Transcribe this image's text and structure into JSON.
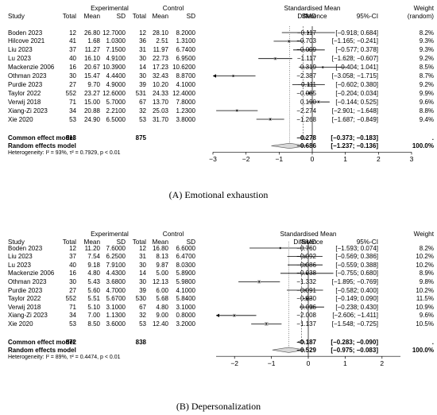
{
  "headers": {
    "study": "Study",
    "experimental": "Experimental",
    "control": "Control",
    "total": "Total",
    "mean": "Mean",
    "sd": "SD",
    "smd_title_line1": "Standardised Mean",
    "smd_title_line2": "Difference",
    "smd": "SMD",
    "ci": "95%-CI",
    "weight_title": "Weight",
    "weight_random": "(random)"
  },
  "chart_data": [
    {
      "type": "forest",
      "caption": "(A) Emotional exhaustion",
      "xlim": [
        -3,
        3
      ],
      "xticks": [
        "−3",
        "−2",
        "−1",
        "0",
        "1",
        "2",
        "3"
      ],
      "studies": [
        {
          "study": "Boden 2023",
          "e_total": "12",
          "e_mean": "26.80",
          "e_sd": "12.7000",
          "c_total": "12",
          "c_mean": "28.10",
          "c_sd": "8.2000",
          "smd": -0.117,
          "lo": -0.918,
          "hi": 0.684,
          "smd_text": "−0.117",
          "ci_text": "[−0.918;  0.684]",
          "weight": "8.2%"
        },
        {
          "study": "Hilcove 2021",
          "e_total": "41",
          "e_mean": "1.68",
          "e_sd": "1.0300",
          "c_total": "36",
          "c_mean": "2.51",
          "c_sd": "1.3100",
          "smd": -0.703,
          "lo": -1.165,
          "hi": -0.241,
          "smd_text": "−0.703",
          "ci_text": "[−1.165; −0.241]",
          "weight": "9.3%"
        },
        {
          "study": "Liu  2023",
          "e_total": "37",
          "e_mean": "11.27",
          "e_sd": "7.1500",
          "c_total": "31",
          "c_mean": "11.97",
          "c_sd": "6.7400",
          "smd": -0.099,
          "lo": -0.577,
          "hi": 0.378,
          "smd_text": "−0.099",
          "ci_text": "[−0.577;  0.378]",
          "weight": "9.3%"
        },
        {
          "study": "Lu  2023",
          "e_total": "40",
          "e_mean": "16.10",
          "e_sd": "4.9100",
          "c_total": "30",
          "c_mean": "22.73",
          "c_sd": "6.9500",
          "smd": -1.117,
          "lo": -1.628,
          "hi": -0.607,
          "smd_text": "−1.117",
          "ci_text": "[−1.628; −0.607]",
          "weight": "9.2%"
        },
        {
          "study": "Mackenzie  2006",
          "e_total": "16",
          "e_mean": "20.67",
          "e_sd": "10.3900",
          "c_total": "14",
          "c_mean": "17.23",
          "c_sd": "10.6200",
          "smd": 0.319,
          "lo": -0.404,
          "hi": 1.041,
          "smd_text": "0.319",
          "ci_text": "[−0.404;  1.041]",
          "weight": "8.5%"
        },
        {
          "study": "Othman 2023",
          "e_total": "30",
          "e_mean": "15.47",
          "e_sd": "4.4400",
          "c_total": "30",
          "c_mean": "32.43",
          "c_sd": "8.8700",
          "smd": -2.387,
          "lo": -3.058,
          "hi": -1.715,
          "smd_text": "−2.387",
          "ci_text": "[−3.058; −1.715]",
          "weight": "8.7%"
        },
        {
          "study": "Purdie 2023",
          "e_total": "27",
          "e_mean": "9.70",
          "e_sd": "4.9000",
          "c_total": "39",
          "c_mean": "10.20",
          "c_sd": "4.1000",
          "smd": -0.111,
          "lo": -0.602,
          "hi": 0.38,
          "smd_text": "−0.111",
          "ci_text": "[−0.602;  0.380]",
          "weight": "9.2%"
        },
        {
          "study": "Taylor 2022",
          "e_total": "552",
          "e_mean": "23.27",
          "e_sd": "12.6000",
          "c_total": "531",
          "c_mean": "24.33",
          "c_sd": "12.4000",
          "smd": -0.085,
          "lo": -0.204,
          "hi": 0.034,
          "smd_text": "−0.085",
          "ci_text": "[−0.204;  0.034]",
          "weight": "9.9%"
        },
        {
          "study": "Verwij 2018",
          "e_total": "71",
          "e_mean": "15.00",
          "e_sd": "5.7000",
          "c_total": "67",
          "c_mean": "13.70",
          "c_sd": "7.8000",
          "smd": 0.19,
          "lo": -0.144,
          "hi": 0.525,
          "smd_text": "0.190",
          "ci_text": "[−0.144;  0.525]",
          "weight": "9.6%"
        },
        {
          "study": "Xiang-Zi 2023",
          "e_total": "34",
          "e_mean": "20.88",
          "e_sd": "2.2100",
          "c_total": "32",
          "c_mean": "25.03",
          "c_sd": "1.2300",
          "smd": -2.274,
          "lo": -2.901,
          "hi": -1.648,
          "smd_text": "−2.274",
          "ci_text": "[−2.901; −1.648]",
          "weight": "8.8%"
        },
        {
          "study": "Xie 2020",
          "e_total": "53",
          "e_mean": "24.90",
          "e_sd": "6.5000",
          "c_total": "53",
          "c_mean": "31.70",
          "c_sd": "3.8000",
          "smd": -1.268,
          "lo": -1.687,
          "hi": -0.849,
          "smd_text": "−1.268",
          "ci_text": "[−1.687; −0.849]",
          "weight": "9.4%"
        }
      ],
      "common": {
        "label": "Common effect model",
        "e_total": "913",
        "c_total": "875",
        "smd": -0.278,
        "lo": -0.373,
        "hi": -0.183,
        "smd_text": "−0.278",
        "ci_text": "[−0.373; −0.183]",
        "weight": "."
      },
      "random": {
        "label": "Random effects model",
        "smd": -0.686,
        "lo": -1.237,
        "hi": -0.136,
        "smd_text": "−0.686",
        "ci_text": "[−1.237; −0.136]",
        "weight": "100.0%"
      },
      "heterogeneity": "Heterogeneity: I² = 93%, τ² = 0.7929, p < 0.01"
    },
    {
      "type": "forest",
      "caption": "(B) Depersonalization",
      "xlim": [
        -2.5,
        2.5
      ],
      "xticks": [
        "−2",
        "−1",
        "0",
        "1",
        "2"
      ],
      "studies": [
        {
          "study": "Boden 2023",
          "e_total": "12",
          "e_mean": "11.20",
          "e_sd": "7.6000",
          "c_total": "12",
          "c_mean": "16.80",
          "c_sd": "6.6000",
          "smd": -0.76,
          "lo": -1.593,
          "hi": 0.074,
          "smd_text": "−0.760",
          "ci_text": "[−1.593;  0.074]",
          "weight": "8.2%"
        },
        {
          "study": "Liu  2023",
          "e_total": "37",
          "e_mean": "7.54",
          "e_sd": "6.2500",
          "c_total": "31",
          "c_mean": "8.13",
          "c_sd": "6.4700",
          "smd": -0.092,
          "lo": -0.569,
          "hi": 0.386,
          "smd_text": "−0.092",
          "ci_text": "[−0.569;  0.386]",
          "weight": "10.2%"
        },
        {
          "study": "Lu  2023",
          "e_total": "40",
          "e_mean": "9.18",
          "e_sd": "7.9100",
          "c_total": "30",
          "c_mean": "9.87",
          "c_sd": "8.0300",
          "smd": -0.086,
          "lo": -0.559,
          "hi": 0.388,
          "smd_text": "−0.086",
          "ci_text": "[−0.559;  0.388]",
          "weight": "10.2%"
        },
        {
          "study": "Mackenzie  2006",
          "e_total": "16",
          "e_mean": "4.80",
          "e_sd": "4.4300",
          "c_total": "14",
          "c_mean": "5.00",
          "c_sd": "5.8900",
          "smd": -0.038,
          "lo": -0.755,
          "hi": 0.68,
          "smd_text": "−0.038",
          "ci_text": "[−0.755;  0.680]",
          "weight": "8.9%"
        },
        {
          "study": "Othman 2023",
          "e_total": "30",
          "e_mean": "5.43",
          "e_sd": "3.6800",
          "c_total": "30",
          "c_mean": "12.13",
          "c_sd": "5.9800",
          "smd": -1.332,
          "lo": -1.895,
          "hi": -0.769,
          "smd_text": "−1.332",
          "ci_text": "[−1.895; −0.769]",
          "weight": "9.8%"
        },
        {
          "study": "Purdie 2023",
          "e_total": "27",
          "e_mean": "5.60",
          "e_sd": "4.7000",
          "c_total": "39",
          "c_mean": "6.00",
          "c_sd": "4.1000",
          "smd": -0.091,
          "lo": -0.582,
          "hi": 0.4,
          "smd_text": "−0.091",
          "ci_text": "[−0.582;  0.400]",
          "weight": "10.2%"
        },
        {
          "study": "Taylor 2022",
          "e_total": "552",
          "e_mean": "5.51",
          "e_sd": "5.6700",
          "c_total": "530",
          "c_mean": "5.68",
          "c_sd": "5.8400",
          "smd": -0.03,
          "lo": -0.149,
          "hi": 0.09,
          "smd_text": "−0.030",
          "ci_text": "[−0.149;  0.090]",
          "weight": "11.5%"
        },
        {
          "study": "Verwij 2018",
          "e_total": "71",
          "e_mean": "5.10",
          "e_sd": "3.1000",
          "c_total": "67",
          "c_mean": "4.80",
          "c_sd": "3.1000",
          "smd": 0.096,
          "lo": -0.238,
          "hi": 0.43,
          "smd_text": "0.096",
          "ci_text": "[−0.238;  0.430]",
          "weight": "10.9%"
        },
        {
          "study": "Xiang-Zi 2023",
          "e_total": "34",
          "e_mean": "7.00",
          "e_sd": "1.1300",
          "c_total": "32",
          "c_mean": "9.00",
          "c_sd": "0.8000",
          "smd": -2.008,
          "lo": -2.606,
          "hi": -1.411,
          "smd_text": "−2.008",
          "ci_text": "[−2.606; −1.411]",
          "weight": "9.6%"
        },
        {
          "study": "Xie 2020",
          "e_total": "53",
          "e_mean": "8.50",
          "e_sd": "3.6000",
          "c_total": "53",
          "c_mean": "12.40",
          "c_sd": "3.2000",
          "smd": -1.137,
          "lo": -1.548,
          "hi": -0.725,
          "smd_text": "−1.137",
          "ci_text": "[−1.548; −0.725]",
          "weight": "10.5%"
        }
      ],
      "common": {
        "label": "Common effect model",
        "e_total": "872",
        "c_total": "838",
        "smd": -0.187,
        "lo": -0.283,
        "hi": -0.09,
        "smd_text": "−0.187",
        "ci_text": "[−0.283; −0.090]",
        "weight": "."
      },
      "random": {
        "label": "Random effects model",
        "smd": -0.529,
        "lo": -0.975,
        "hi": -0.083,
        "smd_text": "−0.529",
        "ci_text": "[−0.975; −0.083]",
        "weight": "100.0%"
      },
      "heterogeneity": "Heterogeneity: I² = 89%, τ² = 0.4474, p < 0.01"
    }
  ]
}
